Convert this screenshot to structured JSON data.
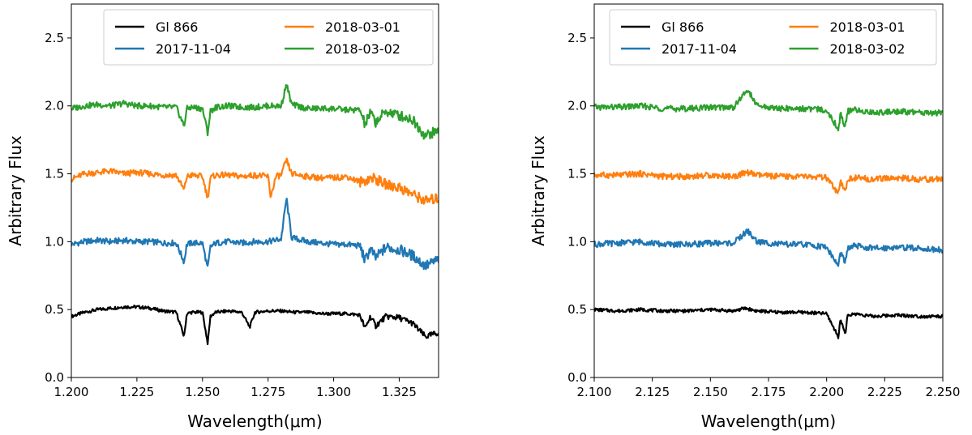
{
  "chart_data": [
    {
      "type": "line",
      "xlabel": "Wavelength(μm)",
      "ylabel": "Arbitrary Flux",
      "xlim": [
        1.2,
        1.34
      ],
      "ylim": [
        0.0,
        2.75
      ],
      "xticks": [
        "1.200",
        "1.225",
        "1.250",
        "1.275",
        "1.300",
        "1.325"
      ],
      "yticks": [
        "0.0",
        "0.5",
        "1.0",
        "1.5",
        "2.0",
        "2.5"
      ],
      "grid": false,
      "legend_position": "top",
      "series": [
        {
          "name": "Gl 866",
          "color": "#000000",
          "offset": 0.5,
          "x": [
            1.2,
            1.205,
            1.21,
            1.215,
            1.22,
            1.225,
            1.23,
            1.235,
            1.24,
            1.243,
            1.244,
            1.246,
            1.25,
            1.252,
            1.253,
            1.255,
            1.26,
            1.265,
            1.268,
            1.27,
            1.275,
            1.28,
            1.285,
            1.29,
            1.295,
            1.3,
            1.305,
            1.31,
            1.312,
            1.314,
            1.316,
            1.32,
            1.325,
            1.33,
            1.335,
            1.34
          ],
          "y": [
            0.45,
            0.48,
            0.5,
            0.51,
            0.52,
            0.52,
            0.51,
            0.49,
            0.48,
            0.3,
            0.47,
            0.48,
            0.48,
            0.25,
            0.45,
            0.48,
            0.49,
            0.48,
            0.37,
            0.48,
            0.49,
            0.49,
            0.48,
            0.48,
            0.47,
            0.47,
            0.47,
            0.46,
            0.36,
            0.45,
            0.38,
            0.45,
            0.44,
            0.4,
            0.3,
            0.33
          ]
        },
        {
          "name": "2017-11-04",
          "color": "#1f77b4",
          "offset": 1.0,
          "x": [
            1.2,
            1.205,
            1.21,
            1.215,
            1.22,
            1.225,
            1.23,
            1.235,
            1.24,
            1.243,
            1.244,
            1.246,
            1.25,
            1.252,
            1.253,
            1.255,
            1.26,
            1.265,
            1.27,
            1.275,
            1.28,
            1.282,
            1.284,
            1.29,
            1.295,
            1.3,
            1.305,
            1.31,
            1.312,
            1.314,
            1.316,
            1.32,
            1.325,
            1.33,
            1.335,
            1.34
          ],
          "y": [
            0.98,
            1.0,
            1.01,
            1.0,
            1.01,
            1.0,
            1.0,
            0.99,
            0.99,
            0.85,
            0.98,
            0.99,
            0.99,
            0.8,
            0.96,
            0.99,
            1.0,
            0.99,
            1.0,
            1.0,
            1.02,
            1.32,
            1.03,
            1.0,
            0.99,
            0.98,
            0.98,
            0.97,
            0.86,
            0.95,
            0.88,
            0.96,
            0.94,
            0.9,
            0.82,
            0.87
          ]
        },
        {
          "name": "2018-03-01",
          "color": "#ff7f0e",
          "offset": 1.5,
          "x": [
            1.2,
            1.205,
            1.21,
            1.215,
            1.22,
            1.225,
            1.23,
            1.235,
            1.24,
            1.243,
            1.244,
            1.246,
            1.25,
            1.252,
            1.253,
            1.255,
            1.26,
            1.265,
            1.27,
            1.275,
            1.276,
            1.278,
            1.28,
            1.282,
            1.284,
            1.29,
            1.295,
            1.3,
            1.305,
            1.31,
            1.315,
            1.32,
            1.325,
            1.33,
            1.335,
            1.34
          ],
          "y": [
            1.46,
            1.5,
            1.51,
            1.52,
            1.5,
            1.51,
            1.5,
            1.49,
            1.49,
            1.38,
            1.48,
            1.49,
            1.48,
            1.32,
            1.47,
            1.49,
            1.49,
            1.48,
            1.49,
            1.48,
            1.33,
            1.48,
            1.49,
            1.6,
            1.5,
            1.48,
            1.47,
            1.47,
            1.48,
            1.44,
            1.47,
            1.42,
            1.4,
            1.35,
            1.3,
            1.32
          ]
        },
        {
          "name": "2018-03-02",
          "color": "#2ca02c",
          "offset": 2.0,
          "x": [
            1.2,
            1.205,
            1.21,
            1.215,
            1.22,
            1.225,
            1.23,
            1.235,
            1.24,
            1.243,
            1.244,
            1.246,
            1.25,
            1.252,
            1.253,
            1.255,
            1.26,
            1.265,
            1.27,
            1.275,
            1.28,
            1.282,
            1.284,
            1.29,
            1.295,
            1.3,
            1.305,
            1.31,
            1.312,
            1.314,
            1.316,
            1.32,
            1.325,
            1.33,
            1.335,
            1.34
          ],
          "y": [
            1.98,
            2.0,
            2.01,
            2.0,
            2.02,
            2.0,
            2.0,
            1.99,
            1.99,
            1.85,
            1.98,
            1.99,
            1.98,
            1.8,
            1.96,
            1.99,
            2.0,
            1.99,
            1.99,
            2.0,
            2.0,
            2.16,
            2.01,
            1.98,
            1.98,
            1.98,
            1.97,
            1.97,
            1.86,
            1.95,
            1.88,
            1.96,
            1.93,
            1.9,
            1.78,
            1.82
          ]
        }
      ]
    },
    {
      "type": "line",
      "xlabel": "Wavelength(μm)",
      "ylabel": "Arbitrary Flux",
      "xlim": [
        2.1,
        2.25
      ],
      "ylim": [
        0.0,
        2.75
      ],
      "xticks": [
        "2.100",
        "2.125",
        "2.150",
        "2.175",
        "2.200",
        "2.225",
        "2.250"
      ],
      "yticks": [
        "0.0",
        "0.5",
        "1.0",
        "1.5",
        "2.0",
        "2.5"
      ],
      "grid": false,
      "legend_position": "top",
      "series": [
        {
          "name": "Gl 866",
          "color": "#000000",
          "offset": 0.5,
          "x": [
            2.1,
            2.11,
            2.12,
            2.13,
            2.14,
            2.15,
            2.16,
            2.165,
            2.17,
            2.18,
            2.19,
            2.2,
            2.205,
            2.206,
            2.208,
            2.209,
            2.212,
            2.22,
            2.23,
            2.24,
            2.25
          ],
          "y": [
            0.5,
            0.49,
            0.5,
            0.49,
            0.49,
            0.5,
            0.49,
            0.51,
            0.49,
            0.48,
            0.48,
            0.47,
            0.3,
            0.43,
            0.32,
            0.45,
            0.47,
            0.45,
            0.46,
            0.45,
            0.45
          ]
        },
        {
          "name": "2017-11-04",
          "color": "#1f77b4",
          "offset": 1.0,
          "x": [
            2.1,
            2.11,
            2.12,
            2.13,
            2.14,
            2.15,
            2.16,
            2.166,
            2.17,
            2.18,
            2.19,
            2.2,
            2.205,
            2.206,
            2.208,
            2.209,
            2.212,
            2.22,
            2.23,
            2.24,
            2.25
          ],
          "y": [
            0.98,
            0.99,
            1.0,
            0.98,
            0.98,
            0.99,
            0.99,
            1.08,
            1.0,
            0.98,
            0.98,
            0.96,
            0.82,
            0.92,
            0.84,
            0.95,
            0.97,
            0.95,
            0.96,
            0.95,
            0.94
          ]
        },
        {
          "name": "2018-03-01",
          "color": "#ff7f0e",
          "offset": 1.5,
          "x": [
            2.1,
            2.11,
            2.12,
            2.13,
            2.14,
            2.15,
            2.16,
            2.166,
            2.17,
            2.18,
            2.19,
            2.2,
            2.205,
            2.206,
            2.208,
            2.209,
            2.212,
            2.22,
            2.23,
            2.24,
            2.25
          ],
          "y": [
            1.49,
            1.49,
            1.5,
            1.48,
            1.48,
            1.49,
            1.48,
            1.51,
            1.49,
            1.48,
            1.48,
            1.47,
            1.35,
            1.44,
            1.36,
            1.46,
            1.47,
            1.46,
            1.47,
            1.46,
            1.46
          ]
        },
        {
          "name": "2018-03-02",
          "color": "#2ca02c",
          "offset": 2.0,
          "x": [
            2.1,
            2.11,
            2.12,
            2.13,
            2.14,
            2.15,
            2.16,
            2.166,
            2.17,
            2.18,
            2.19,
            2.2,
            2.205,
            2.206,
            2.208,
            2.209,
            2.212,
            2.22,
            2.23,
            2.24,
            2.25
          ],
          "y": [
            1.99,
            1.99,
            2.0,
            1.98,
            1.98,
            1.99,
            1.99,
            2.12,
            2.0,
            1.98,
            1.98,
            1.97,
            1.83,
            1.94,
            1.85,
            1.96,
            1.97,
            1.95,
            1.96,
            1.95,
            1.95
          ]
        }
      ]
    }
  ]
}
